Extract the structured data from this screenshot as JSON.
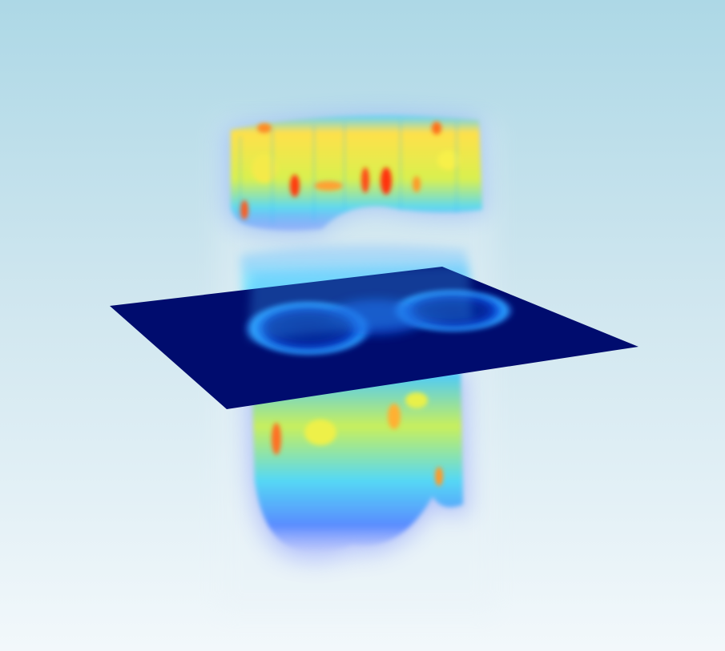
{
  "view": {
    "background_top": "#add8e6",
    "background_bottom": "#f2f8fb",
    "colormap": "jet",
    "slice_plane_color": "#000c6e"
  }
}
